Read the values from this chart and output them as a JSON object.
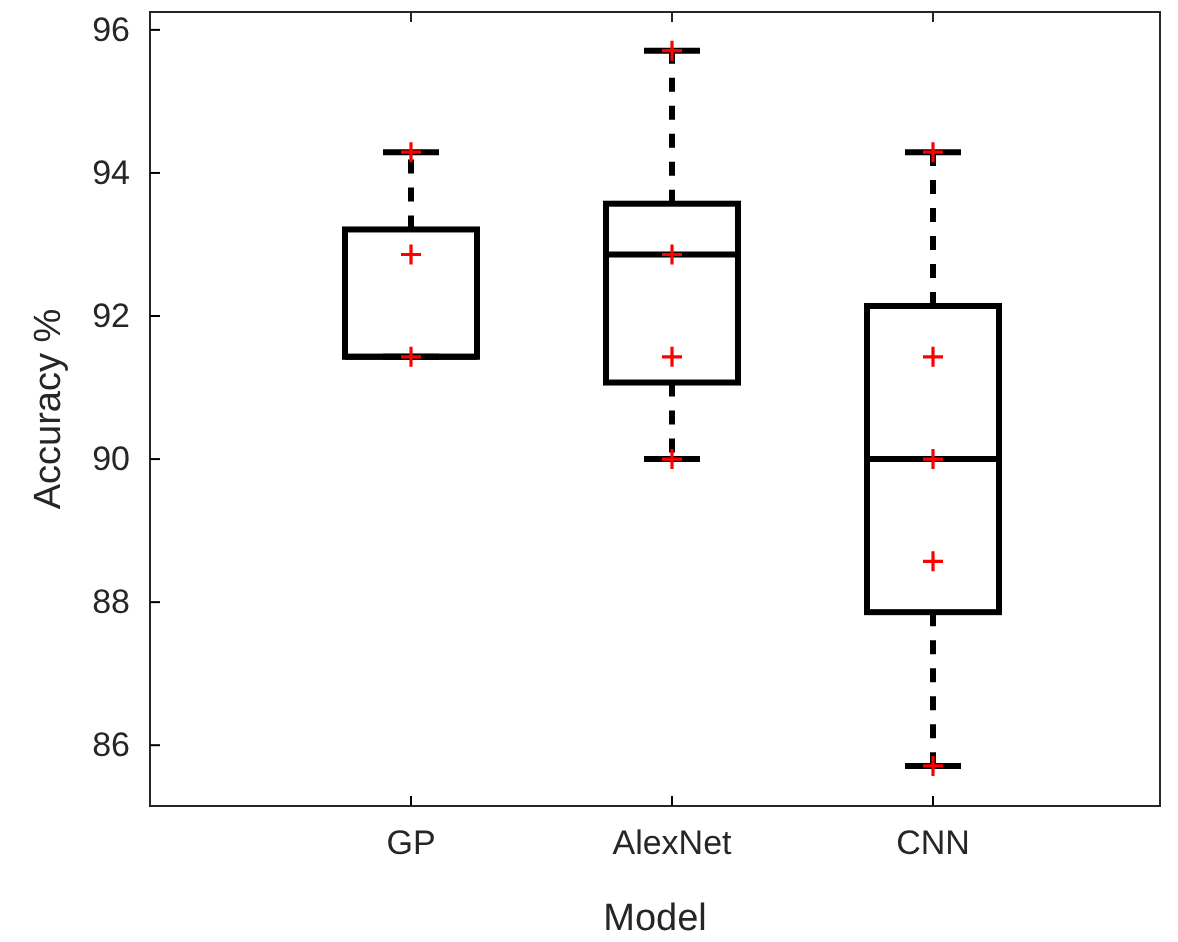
{
  "chart_data": {
    "type": "box",
    "xlabel": "Model",
    "ylabel": "Accuracy %",
    "categories": [
      "GP",
      "AlexNet",
      "CNN"
    ],
    "ylim": [
      85.15,
      96.25
    ],
    "yticks": [
      86,
      88,
      90,
      92,
      94,
      96
    ],
    "grid": false,
    "line_style": "dashed",
    "series": [
      {
        "color": "#000000",
        "boxes": [
          {
            "low": 91.43,
            "q1": 91.43,
            "median": 91.43,
            "q3": 93.21,
            "high": 94.29
          },
          {
            "low": 90.0,
            "q1": 91.07,
            "median": 92.86,
            "q3": 93.57,
            "high": 95.71
          },
          {
            "low": 85.71,
            "q1": 87.86,
            "median": 90.0,
            "q3": 92.14,
            "high": 94.29
          }
        ]
      },
      {
        "type": "scatter",
        "color": "#ff0000",
        "marker": "cross",
        "x": [
          "GP",
          "GP",
          "GP",
          "AlexNet",
          "AlexNet",
          "AlexNet",
          "AlexNet",
          "CNN",
          "CNN",
          "CNN",
          "CNN",
          "CNN"
        ],
        "values": [
          94.29,
          92.86,
          91.43,
          95.71,
          92.86,
          91.43,
          90.0,
          94.29,
          91.43,
          90.0,
          88.57,
          85.71
        ]
      }
    ]
  }
}
